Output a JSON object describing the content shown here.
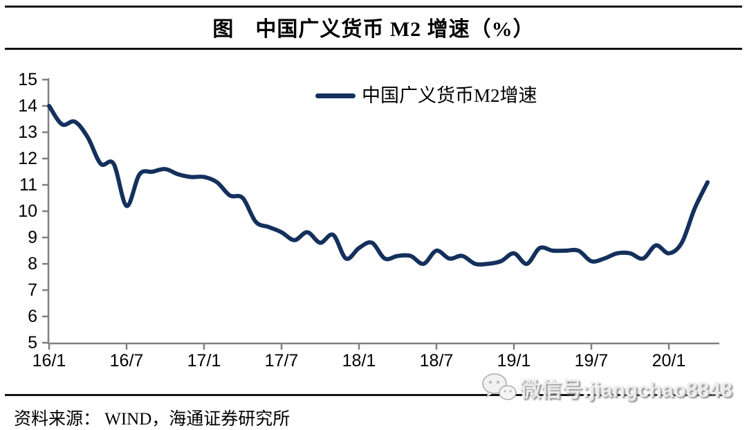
{
  "header": {
    "title": "图　中国广义货币 M2 增速（%）"
  },
  "legend": {
    "label": "中国广义货币M2增速"
  },
  "footer": {
    "source": "资料来源： WIND，海通证券研究所",
    "watermark": "微信号:jiangchao8848",
    "watermark_icon": "wechat-icon"
  },
  "chart_data": {
    "type": "line",
    "title": "中国广义货币 M2 增速（%）",
    "xlabel": "",
    "ylabel": "",
    "ylim": [
      5,
      15
    ],
    "y_ticks": [
      5,
      6,
      7,
      8,
      9,
      10,
      11,
      12,
      13,
      14,
      15
    ],
    "x_tick_labels": [
      "16/1",
      "16/7",
      "17/1",
      "17/7",
      "18/1",
      "18/7",
      "19/1",
      "19/7",
      "20/1"
    ],
    "x_tick_month_indices": [
      0,
      6,
      12,
      18,
      24,
      30,
      36,
      42,
      48
    ],
    "grid": false,
    "legend_position": "top-center",
    "line_color": "#14305C",
    "axis_color": "#808080",
    "series": [
      {
        "name": "中国广义货币M2增速",
        "x": [
          "2016/1",
          "2016/2",
          "2016/3",
          "2016/4",
          "2016/5",
          "2016/6",
          "2016/7",
          "2016/8",
          "2016/9",
          "2016/10",
          "2016/11",
          "2016/12",
          "2017/1",
          "2017/2",
          "2017/3",
          "2017/4",
          "2017/5",
          "2017/6",
          "2017/7",
          "2017/8",
          "2017/9",
          "2017/10",
          "2017/11",
          "2017/12",
          "2018/1",
          "2018/2",
          "2018/3",
          "2018/4",
          "2018/5",
          "2018/6",
          "2018/7",
          "2018/8",
          "2018/9",
          "2018/10",
          "2018/11",
          "2018/12",
          "2019/1",
          "2019/2",
          "2019/3",
          "2019/4",
          "2019/5",
          "2019/6",
          "2019/7",
          "2019/8",
          "2019/9",
          "2019/10",
          "2019/11",
          "2019/12",
          "2020/1",
          "2020/2",
          "2020/3",
          "2020/4"
        ],
        "values": [
          14.0,
          13.3,
          13.4,
          12.8,
          11.8,
          11.8,
          10.2,
          11.4,
          11.5,
          11.6,
          11.4,
          11.3,
          11.3,
          11.1,
          10.6,
          10.5,
          9.6,
          9.4,
          9.2,
          8.9,
          9.2,
          8.8,
          9.1,
          8.2,
          8.6,
          8.8,
          8.2,
          8.3,
          8.3,
          8.0,
          8.5,
          8.2,
          8.3,
          8.0,
          8.0,
          8.1,
          8.4,
          8.0,
          8.6,
          8.5,
          8.5,
          8.5,
          8.1,
          8.2,
          8.4,
          8.4,
          8.2,
          8.7,
          8.4,
          8.8,
          10.1,
          11.1
        ]
      }
    ]
  }
}
